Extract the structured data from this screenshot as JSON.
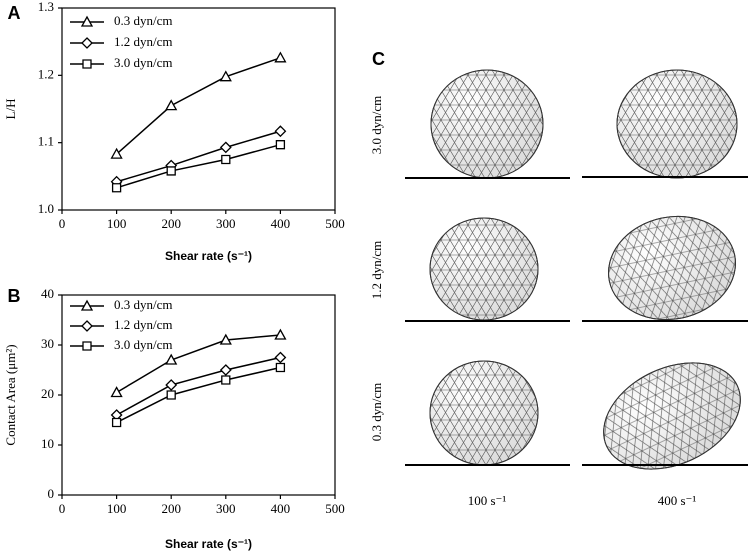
{
  "chart_data": [
    {
      "type": "line",
      "panel_label": "A",
      "xlabel": "Shear rate (s⁻¹)",
      "ylabel": "L/H",
      "x": [
        100,
        200,
        300,
        400
      ],
      "series": [
        {
          "name": "0.3 dyn/cm",
          "color": "#000000",
          "marker": "triangle",
          "values": [
            1.083,
            1.155,
            1.198,
            1.226
          ]
        },
        {
          "name": "1.2 dyn/cm",
          "color": "#000000",
          "marker": "diamond",
          "values": [
            1.042,
            1.066,
            1.093,
            1.117
          ]
        },
        {
          "name": "3.0 dyn/cm",
          "color": "#000000",
          "marker": "square",
          "values": [
            1.033,
            1.058,
            1.075,
            1.097
          ]
        }
      ],
      "xlim": [
        0,
        500
      ],
      "xticks": [
        0,
        100,
        200,
        300,
        400,
        500
      ],
      "ylim": [
        1,
        1.3
      ],
      "yticks": [
        {
          "value": 1,
          "label": "1.0"
        },
        1.1,
        1.2,
        1.3
      ],
      "legend": "upper left",
      "grid": false
    },
    {
      "type": "line",
      "panel_label": "B",
      "xlabel": "Shear rate (s⁻¹)",
      "ylabel": "Contact Area (μm²)",
      "x": [
        100,
        200,
        300,
        400
      ],
      "series": [
        {
          "name": "0.3 dyn/cm",
          "color": "#000000",
          "marker": "triangle",
          "values": [
            20.5,
            27,
            31,
            32
          ]
        },
        {
          "name": "1.2 dyn/cm",
          "color": "#000000",
          "marker": "diamond",
          "values": [
            16,
            22,
            25,
            27.5
          ]
        },
        {
          "name": "3.0 dyn/cm",
          "color": "#000000",
          "marker": "square",
          "values": [
            14.5,
            20,
            23,
            25.5
          ]
        }
      ],
      "xlim": [
        0,
        500
      ],
      "xticks": [
        0,
        100,
        200,
        300,
        400,
        500
      ],
      "ylim": [
        0,
        40
      ],
      "yticks": [
        0,
        10,
        20,
        30,
        40
      ],
      "legend": "upper left",
      "grid": false
    }
  ],
  "panel_c": {
    "label": "C",
    "row_labels": [
      "3.0 dyn/cm",
      "1.2 dyn/cm",
      "0.3 dyn/cm"
    ],
    "col_labels": [
      "100 s⁻¹",
      "400 s⁻¹"
    ]
  }
}
